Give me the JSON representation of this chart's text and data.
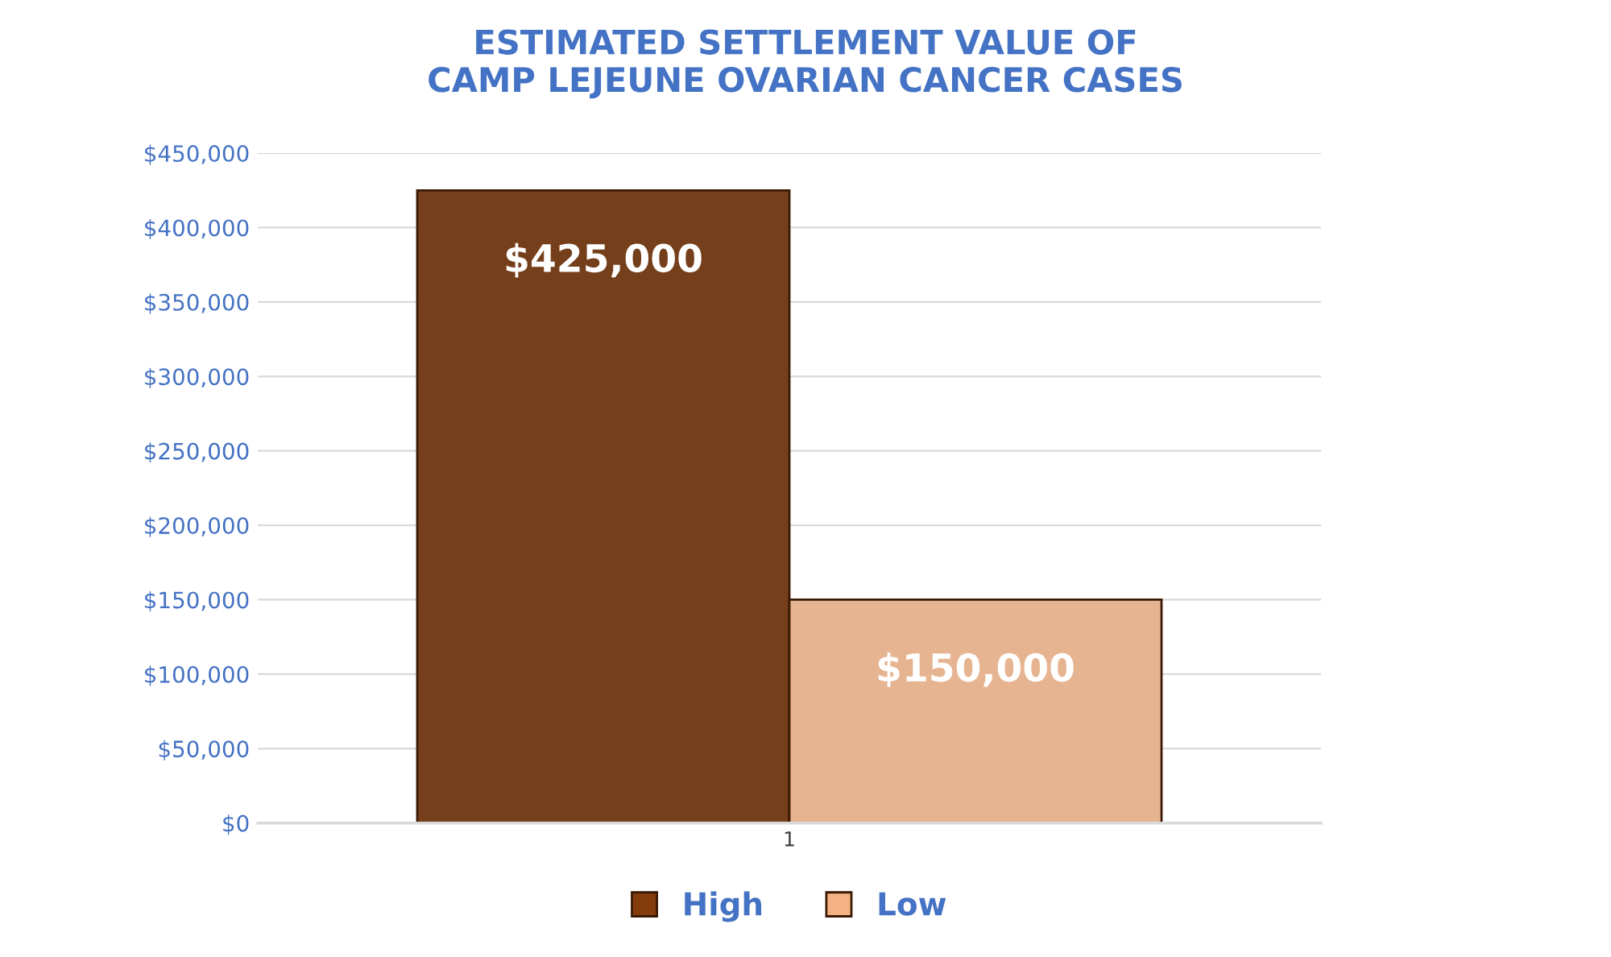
{
  "chart_data": {
    "type": "bar",
    "title": "ESTIMATED SETTLEMENT VALUE OF\nCAMP LEJEUNE OVARIAN CANCER CASES",
    "categories": [
      "1"
    ],
    "series": [
      {
        "name": "High",
        "color": "#843c0c",
        "values": [
          425000
        ],
        "value_labels": [
          "$425,000"
        ]
      },
      {
        "name": "Low",
        "color": "#f4b183",
        "values": [
          150000
        ],
        "value_labels": [
          "$150,000"
        ]
      }
    ],
    "ylim": [
      0,
      450000
    ],
    "yticks": [
      {
        "value": 0,
        "label": "$0"
      },
      {
        "value": 50000,
        "label": "$50,000"
      },
      {
        "value": 100000,
        "label": "$100,000"
      },
      {
        "value": 150000,
        "label": "$150,000"
      },
      {
        "value": 200000,
        "label": "$200,000"
      },
      {
        "value": 250000,
        "label": "$250,000"
      },
      {
        "value": 300000,
        "label": "$300,000"
      },
      {
        "value": 350000,
        "label": "$350,000"
      },
      {
        "value": 400000,
        "label": "$400,000"
      },
      {
        "value": 450000,
        "label": "$450,000"
      }
    ],
    "grid": "y",
    "legend": "bottom"
  }
}
